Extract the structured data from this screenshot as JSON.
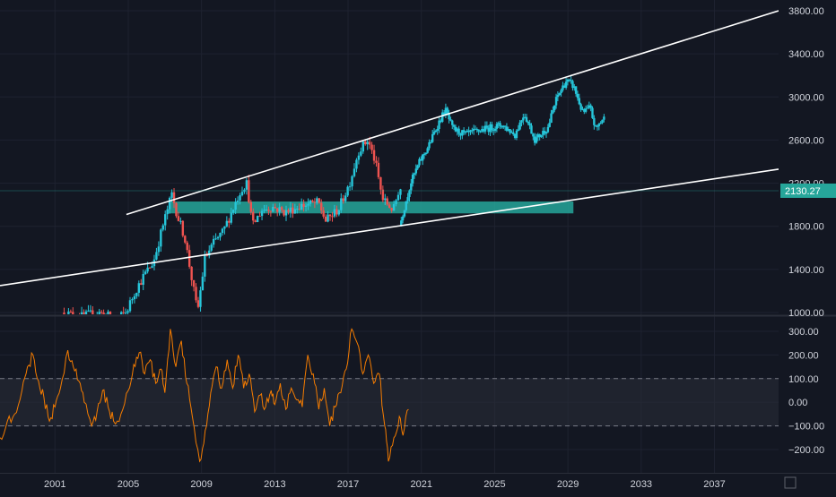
{
  "colors": {
    "background": "#131722",
    "grid": "#1e2230",
    "axis_text": "#d1d4dc",
    "up_candle": "#26c6da",
    "down_candle": "#ef5350",
    "projection": "#26c6da",
    "zone_fill": "#26a69a",
    "trendline": "#ffffff",
    "cci_line": "#f57c00",
    "cci_band": "#2a2e39",
    "cci_band_border": "#787b86",
    "price_label_bg": "#26a69a",
    "separator": "#2a2e39"
  },
  "chart_data": [
    {
      "type": "candlestick",
      "x_tick_labels": [
        "2001",
        "2005",
        "2009",
        "2013",
        "2017",
        "2021",
        "2025",
        "2029",
        "2033",
        "2037"
      ],
      "x_ticks": [
        2001,
        2005,
        2009,
        2013,
        2017,
        2021,
        2025,
        2029,
        2033,
        2037
      ],
      "xlim": [
        1998,
        2040.5
      ],
      "ylim": [
        1000,
        3850
      ],
      "y_tick_labels": [
        "1000.00",
        "1400.00",
        "1800.00",
        "2200.00",
        "2600.00",
        "3000.00",
        "3400.00",
        "3800.00"
      ],
      "y_ticks": [
        1000,
        1400,
        1800,
        2200,
        2600,
        3000,
        3400,
        3800
      ],
      "last_price_label": "2130.27",
      "last_price": 2130.27,
      "historical_path": [
        [
          2001.5,
          1000
        ],
        [
          2002.5,
          960
        ],
        [
          2003.5,
          1000
        ],
        [
          2004.5,
          940
        ],
        [
          2005.0,
          1000
        ],
        [
          2005.5,
          1200
        ],
        [
          2006.0,
          1350
        ],
        [
          2006.5,
          1470
        ],
        [
          2007.0,
          1800
        ],
        [
          2007.5,
          2100
        ],
        [
          2007.8,
          1900
        ],
        [
          2008.2,
          1700
        ],
        [
          2008.5,
          1400
        ],
        [
          2008.9,
          1000
        ],
        [
          2009.3,
          1500
        ],
        [
          2009.8,
          1650
        ],
        [
          2010.3,
          1750
        ],
        [
          2010.8,
          1950
        ],
        [
          2011.3,
          2150
        ],
        [
          2011.6,
          2200
        ],
        [
          2011.9,
          1800
        ],
        [
          2012.4,
          1950
        ],
        [
          2013.0,
          1980
        ],
        [
          2013.7,
          1930
        ],
        [
          2014.5,
          1990
        ],
        [
          2015.5,
          2020
        ],
        [
          2015.9,
          1850
        ],
        [
          2016.6,
          1960
        ],
        [
          2017.2,
          2200
        ],
        [
          2017.7,
          2500
        ],
        [
          2018.2,
          2600
        ],
        [
          2018.6,
          2400
        ],
        [
          2019.0,
          2050
        ],
        [
          2019.6,
          1950
        ],
        [
          2019.9,
          2150
        ]
      ],
      "projection_path": [
        [
          2019.9,
          1800
        ],
        [
          2020.5,
          2200
        ],
        [
          2021.0,
          2400
        ],
        [
          2021.5,
          2550
        ],
        [
          2022.0,
          2750
        ],
        [
          2022.4,
          2880
        ],
        [
          2022.8,
          2700
        ],
        [
          2023.5,
          2650
        ],
        [
          2024.5,
          2700
        ],
        [
          2025.5,
          2740
        ],
        [
          2026.2,
          2650
        ],
        [
          2026.7,
          2850
        ],
        [
          2027.3,
          2600
        ],
        [
          2028.0,
          2720
        ],
        [
          2028.5,
          3000
        ],
        [
          2029.0,
          3150
        ],
        [
          2029.4,
          3100
        ],
        [
          2029.9,
          2850
        ],
        [
          2030.3,
          2900
        ],
        [
          2030.6,
          2700
        ],
        [
          2031.0,
          2800
        ]
      ],
      "support_zone": {
        "x": [
          2007.2,
          2029.3
        ],
        "y": [
          1920,
          2030
        ]
      },
      "trendlines": [
        {
          "name": "upper",
          "points": [
            [
              2004.9,
              1910
            ],
            [
              2040.5,
              3800
            ]
          ]
        },
        {
          "name": "lower",
          "points": [
            [
              1998.0,
              1250
            ],
            [
              2040.5,
              2330
            ]
          ]
        }
      ]
    },
    {
      "type": "line",
      "xlim": [
        1998,
        2040.5
      ],
      "ylim": [
        -280,
        330
      ],
      "y_tick_labels": [
        "300.00",
        "200.00",
        "100.00",
        "0.00",
        "−100.00",
        "−200.00"
      ],
      "y_ticks": [
        300,
        200,
        100,
        0,
        -100,
        -200
      ],
      "band": [
        -100,
        100
      ],
      "series": [
        {
          "values": [
            [
              1998.0,
              -150
            ],
            [
              1998.4,
              -80
            ],
            [
              1998.8,
              -50
            ],
            [
              1999.2,
              50
            ],
            [
              1999.5,
              150
            ],
            [
              1999.8,
              200
            ],
            [
              2000.1,
              90
            ],
            [
              2000.4,
              20
            ],
            [
              2000.7,
              -80
            ],
            [
              2001.0,
              -20
            ],
            [
              2001.3,
              60
            ],
            [
              2001.7,
              220
            ],
            [
              2002.0,
              150
            ],
            [
              2002.3,
              90
            ],
            [
              2002.6,
              0
            ],
            [
              2003.0,
              -100
            ],
            [
              2003.3,
              -40
            ],
            [
              2003.6,
              50
            ],
            [
              2003.9,
              -20
            ],
            [
              2004.2,
              -80
            ],
            [
              2004.6,
              -50
            ],
            [
              2005.0,
              50
            ],
            [
              2005.3,
              160
            ],
            [
              2005.6,
              210
            ],
            [
              2005.9,
              120
            ],
            [
              2006.2,
              180
            ],
            [
              2006.5,
              80
            ],
            [
              2006.8,
              140
            ],
            [
              2007.0,
              40
            ],
            [
              2007.3,
              310
            ],
            [
              2007.6,
              150
            ],
            [
              2007.9,
              260
            ],
            [
              2008.2,
              80
            ],
            [
              2008.5,
              -60
            ],
            [
              2008.9,
              -250
            ],
            [
              2009.2,
              -120
            ],
            [
              2009.5,
              40
            ],
            [
              2009.8,
              150
            ],
            [
              2010.1,
              60
            ],
            [
              2010.4,
              180
            ],
            [
              2010.7,
              60
            ],
            [
              2011.0,
              200
            ],
            [
              2011.3,
              60
            ],
            [
              2011.6,
              120
            ],
            [
              2011.9,
              -40
            ],
            [
              2012.2,
              30
            ],
            [
              2012.5,
              -20
            ],
            [
              2012.8,
              50
            ],
            [
              2013.0,
              -10
            ],
            [
              2013.3,
              80
            ],
            [
              2013.6,
              -30
            ],
            [
              2013.9,
              60
            ],
            [
              2014.2,
              10
            ],
            [
              2014.5,
              -20
            ],
            [
              2014.8,
              200
            ],
            [
              2015.1,
              120
            ],
            [
              2015.4,
              -30
            ],
            [
              2015.7,
              60
            ],
            [
              2016.0,
              -100
            ],
            [
              2016.3,
              -20
            ],
            [
              2016.6,
              40
            ],
            [
              2016.9,
              140
            ],
            [
              2017.2,
              310
            ],
            [
              2017.5,
              250
            ],
            [
              2017.8,
              120
            ],
            [
              2018.1,
              200
            ],
            [
              2018.4,
              80
            ],
            [
              2018.7,
              120
            ],
            [
              2019.0,
              -100
            ],
            [
              2019.2,
              -250
            ],
            [
              2019.5,
              -150
            ],
            [
              2019.8,
              -60
            ],
            [
              2020.0,
              -140
            ],
            [
              2020.3,
              -30
            ]
          ]
        }
      ]
    }
  ]
}
